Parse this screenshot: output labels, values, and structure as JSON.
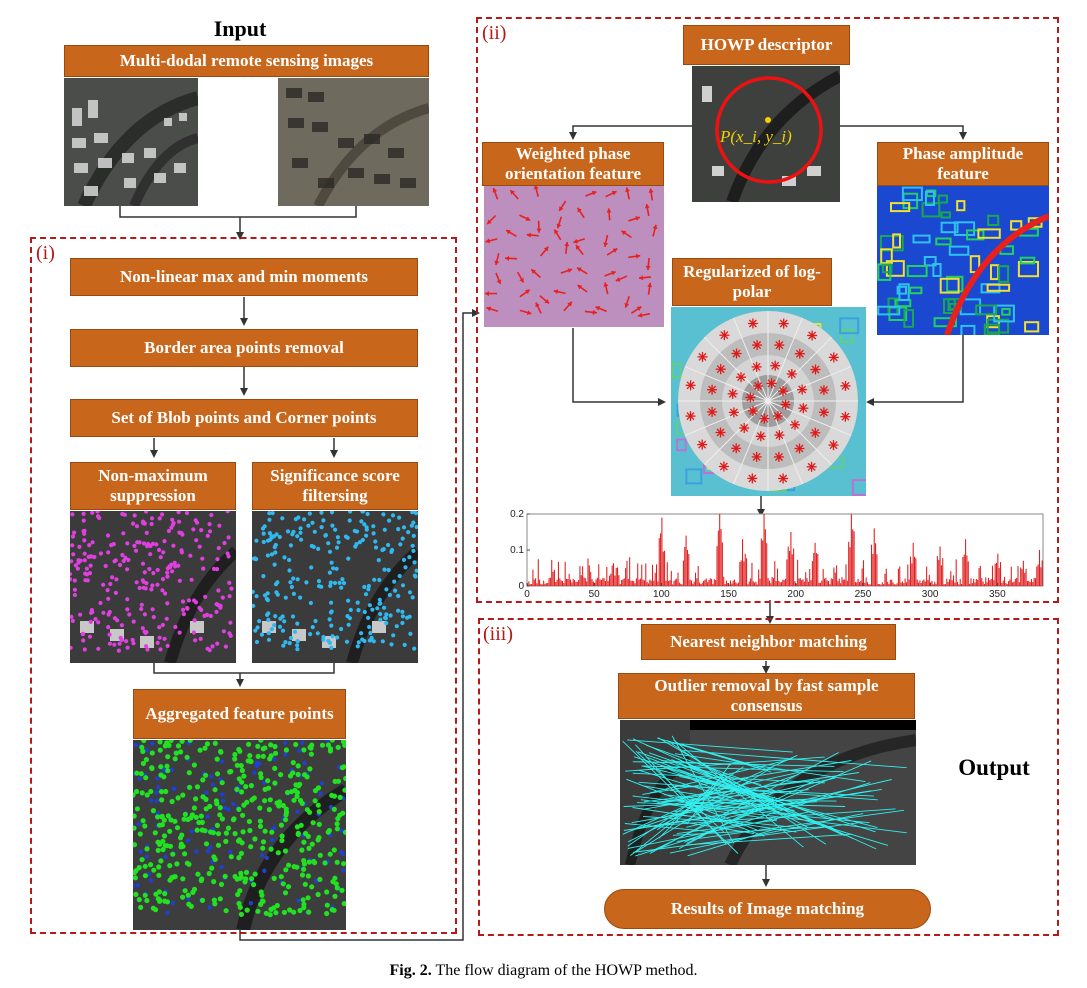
{
  "input_heading": "Input",
  "output_heading": "Output",
  "input_box": "Multi-dodal remote sensing images",
  "section_i": {
    "label": "(i)",
    "steps": [
      "Non-linear max and min moments",
      "Border area points removal",
      "Set of Blob points  and Corner points"
    ],
    "nms": "Non-maximum suppression",
    "sig": "Significance score filtersing",
    "agg": "Aggregated feature points"
  },
  "section_ii": {
    "label": "(ii)",
    "descriptor": "HOWP descriptor",
    "keypoint_label": "P(x_i, y_i)",
    "weighted": "Weighted phase orientation feature",
    "amplitude": "Phase amplitude feature",
    "logpolar": "Regularized of log-polar"
  },
  "section_iii": {
    "label": "(iii)",
    "nn": "Nearest neighbor matching",
    "outlier": "Outlier removal by fast sample consensus",
    "result": "Results of Image matching"
  },
  "caption": {
    "prefix": "Fig. 2.",
    "text": "The flow diagram of the HOWP method."
  },
  "colors": {
    "box_orange": "#c8661c",
    "dashed_red": "#b41a1a",
    "nms_points": "#e040e0",
    "sig_points": "#30b8f0",
    "agg_points": "#22e022",
    "match_lines": "#30f0f0",
    "histogram_bars": "#e02020"
  },
  "chart_data": {
    "type": "bar",
    "title": "",
    "xlabel": "",
    "ylabel": "",
    "xlim": [
      0,
      384
    ],
    "ylim": [
      0,
      0.2
    ],
    "x_ticks": [
      "0",
      "50",
      "100",
      "150",
      "200",
      "250",
      "300",
      "350"
    ],
    "y_ticks": [
      "0",
      "0.1",
      "0.2"
    ],
    "peaks": [
      {
        "x": 18,
        "value": 0.04
      },
      {
        "x": 40,
        "value": 0.03
      },
      {
        "x": 66,
        "value": 0.05
      },
      {
        "x": 100,
        "value": 0.19
      },
      {
        "x": 118,
        "value": 0.14
      },
      {
        "x": 143,
        "value": 0.2
      },
      {
        "x": 160,
        "value": 0.13
      },
      {
        "x": 176,
        "value": 0.21
      },
      {
        "x": 196,
        "value": 0.15
      },
      {
        "x": 214,
        "value": 0.12
      },
      {
        "x": 241,
        "value": 0.2
      },
      {
        "x": 258,
        "value": 0.16
      },
      {
        "x": 287,
        "value": 0.12
      },
      {
        "x": 307,
        "value": 0.11
      },
      {
        "x": 326,
        "value": 0.13
      },
      {
        "x": 350,
        "value": 0.09
      },
      {
        "x": 369,
        "value": 0.07
      },
      {
        "x": 381,
        "value": 0.1
      }
    ]
  }
}
